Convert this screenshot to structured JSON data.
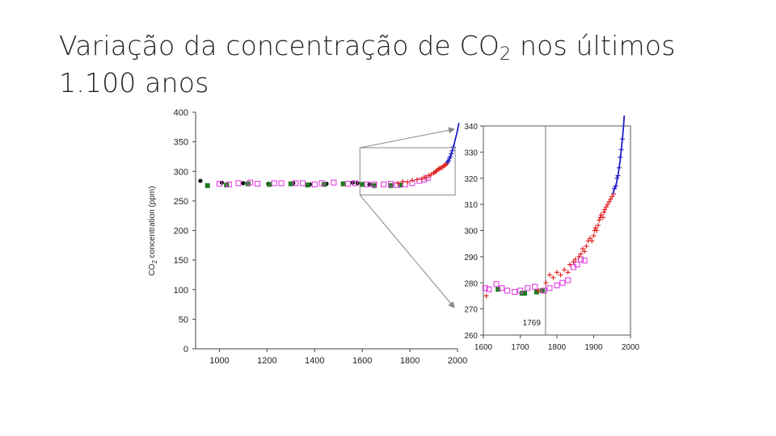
{
  "slide": {
    "title_prefix": "Variação da concentração de CO",
    "title_subscript": "2",
    "title_suffix": " nos últimos 1.100 anos"
  },
  "chart_data": [
    {
      "type": "scatter",
      "title": "",
      "ylabel": "CO2 concentration (ppm)",
      "ylabel_main": "CO",
      "ylabel_sub": "2",
      "ylabel_rest": " concentration (ppm)",
      "xlabel": "",
      "xlim": [
        900,
        2000
      ],
      "ylim": [
        0,
        400
      ],
      "x_ticks": [
        1000,
        1200,
        1400,
        1600,
        1800,
        2000
      ],
      "y_ticks": [
        0,
        50,
        100,
        150,
        200,
        250,
        300,
        350,
        400
      ],
      "grid": false,
      "legend": "none",
      "series": [
        {
          "marker": "black-dot",
          "color": "#111111",
          "points": [
            [
              920,
              284
            ],
            [
              1010,
              281
            ],
            [
              1100,
              280
            ],
            [
              1205,
              279
            ],
            [
              1310,
              280
            ],
            [
              1380,
              278
            ],
            [
              1450,
              279
            ],
            [
              1560,
              281
            ],
            [
              1580,
              280
            ],
            [
              1630,
              278
            ]
          ]
        },
        {
          "marker": "green-square",
          "color": "#1f7a1f",
          "points": [
            [
              950,
              276
            ],
            [
              1030,
              277
            ],
            [
              1120,
              279
            ],
            [
              1210,
              278
            ],
            [
              1300,
              279
            ],
            [
              1370,
              277
            ],
            [
              1440,
              278
            ],
            [
              1520,
              279
            ],
            [
              1600,
              278
            ],
            [
              1650,
              276
            ],
            [
              1720,
              276
            ],
            [
              1760,
              277
            ]
          ]
        },
        {
          "marker": "magenta-open-square",
          "color": "#e040e0",
          "points": [
            [
              1000,
              279
            ],
            [
              1040,
              278
            ],
            [
              1080,
              280
            ],
            [
              1130,
              281
            ],
            [
              1160,
              279
            ],
            [
              1230,
              280
            ],
            [
              1260,
              280
            ],
            [
              1320,
              280
            ],
            [
              1350,
              280
            ],
            [
              1400,
              278
            ],
            [
              1430,
              280
            ],
            [
              1480,
              281
            ],
            [
              1540,
              279
            ],
            [
              1570,
              280
            ],
            [
              1620,
              278
            ],
            [
              1650,
              278
            ],
            [
              1690,
              278
            ],
            [
              1720,
              279
            ],
            [
              1745,
              277
            ],
            [
              1780,
              278
            ],
            [
              1810,
              280
            ],
            [
              1840,
              284
            ],
            [
              1860,
              286
            ],
            [
              1875,
              289
            ]
          ]
        },
        {
          "marker": "red-plus",
          "color": "#e0201f",
          "points": [
            [
              1750,
              280
            ],
            [
              1770,
              283
            ],
            [
              1790,
              282
            ],
            [
              1810,
              285
            ],
            [
              1830,
              286
            ],
            [
              1850,
              287
            ],
            [
              1860,
              290
            ],
            [
              1870,
              290
            ],
            [
              1880,
              293
            ],
            [
              1890,
              295
            ],
            [
              1900,
              297
            ],
            [
              1905,
              299
            ],
            [
              1910,
              300
            ],
            [
              1915,
              302
            ],
            [
              1920,
              304
            ],
            [
              1925,
              305
            ],
            [
              1930,
              306
            ],
            [
              1935,
              306
            ],
            [
              1940,
              309
            ],
            [
              1945,
              310
            ],
            [
              1950,
              311
            ],
            [
              1955,
              313
            ]
          ]
        },
        {
          "marker": "blue-line",
          "color": "#2020c8",
          "points": [
            [
              1958,
              315
            ],
            [
              1962,
              318
            ],
            [
              1966,
              321
            ],
            [
              1970,
              325
            ],
            [
              1974,
              330
            ],
            [
              1978,
              335
            ],
            [
              1982,
              341
            ],
            [
              1986,
              346
            ],
            [
              1990,
              354
            ],
            [
              1994,
              359
            ],
            [
              1998,
              366
            ],
            [
              2002,
              374
            ],
            [
              2006,
              382
            ]
          ]
        },
        {
          "marker": "blue-plus",
          "color": "#2020c8",
          "points": [
            [
              1958,
              316
            ],
            [
              1962,
              318
            ],
            [
              1966,
              322
            ],
            [
              1970,
              325
            ],
            [
              1974,
              330
            ],
            [
              1978,
              335
            ],
            [
              1982,
              341
            ]
          ]
        }
      ]
    },
    {
      "type": "scatter",
      "title": "",
      "xlabel": "",
      "ylabel": "",
      "xlim": [
        1600,
        2000
      ],
      "ylim": [
        260,
        340
      ],
      "y_ticks_labels": [
        "260",
        "270",
        "280",
        "290",
        "300",
        "310",
        "320",
        "330",
        "340"
      ],
      "x_ticks": [
        1600,
        1700,
        1800,
        1900,
        2000
      ],
      "x_tick_labels": [
        "1600",
        "1700",
        "1800",
        "1900",
        "2000"
      ],
      "annotation_label": "1769",
      "annotation_x": 1769,
      "grid": false,
      "legend": "none",
      "series": [
        {
          "marker": "green-square",
          "color": "#1f7a1f",
          "points": [
            [
              1640,
              277.5
            ],
            [
              1705,
              276
            ],
            [
              1712,
              276
            ],
            [
              1745,
              276.5
            ],
            [
              1760,
              277
            ]
          ]
        },
        {
          "marker": "magenta-open-square",
          "color": "#e040e0",
          "points": [
            [
              1605,
              278
            ],
            [
              1615,
              277.5
            ],
            [
              1635,
              279.5
            ],
            [
              1650,
              278
            ],
            [
              1665,
              277
            ],
            [
              1685,
              276.5
            ],
            [
              1700,
              277
            ],
            [
              1720,
              278
            ],
            [
              1740,
              278.5
            ],
            [
              1765,
              277
            ],
            [
              1780,
              278
            ],
            [
              1800,
              279
            ],
            [
              1815,
              280
            ],
            [
              1830,
              281
            ],
            [
              1845,
              286
            ],
            [
              1855,
              287
            ],
            [
              1865,
              289
            ],
            [
              1875,
              288.5
            ]
          ]
        },
        {
          "marker": "red-plus",
          "color": "#e0201f",
          "points": [
            [
              1608,
              275
            ],
            [
              1750,
              277
            ],
            [
              1770,
              280
            ],
            [
              1780,
              283
            ],
            [
              1790,
              282
            ],
            [
              1800,
              284
            ],
            [
              1810,
              283
            ],
            [
              1820,
              285
            ],
            [
              1830,
              284
            ],
            [
              1835,
              287
            ],
            [
              1845,
              288
            ],
            [
              1850,
              289
            ],
            [
              1860,
              290
            ],
            [
              1865,
              291
            ],
            [
              1870,
              293
            ],
            [
              1875,
              292
            ],
            [
              1880,
              294
            ],
            [
              1885,
              296
            ],
            [
              1890,
              297
            ],
            [
              1895,
              296
            ],
            [
              1900,
              298
            ],
            [
              1902,
              300
            ],
            [
              1905,
              301
            ],
            [
              1908,
              300
            ],
            [
              1912,
              302
            ],
            [
              1915,
              304
            ],
            [
              1918,
              305
            ],
            [
              1920,
              306
            ],
            [
              1925,
              305
            ],
            [
              1928,
              307
            ],
            [
              1930,
              308
            ],
            [
              1934,
              309
            ],
            [
              1938,
              310
            ],
            [
              1942,
              311
            ],
            [
              1946,
              312
            ],
            [
              1950,
              313
            ],
            [
              1954,
              314
            ]
          ]
        },
        {
          "marker": "blue-line",
          "color": "#2020c8",
          "points": [
            [
              1952,
              314
            ],
            [
              1956,
              316
            ],
            [
              1960,
              317
            ],
            [
              1963,
              319
            ],
            [
              1966,
              321
            ],
            [
              1969,
              324
            ],
            [
              1972,
              327
            ],
            [
              1975,
              331
            ],
            [
              1978,
              335
            ],
            [
              1981,
              340
            ],
            [
              1983,
              344
            ]
          ]
        },
        {
          "marker": "blue-plus",
          "color": "#2020c8",
          "points": [
            [
              1956,
              316
            ],
            [
              1960,
              317
            ],
            [
              1963,
              320
            ],
            [
              1966,
              321
            ],
            [
              1969,
              324
            ],
            [
              1972,
              328
            ],
            [
              1975,
              331
            ],
            [
              1978,
              335
            ]
          ]
        }
      ]
    }
  ]
}
